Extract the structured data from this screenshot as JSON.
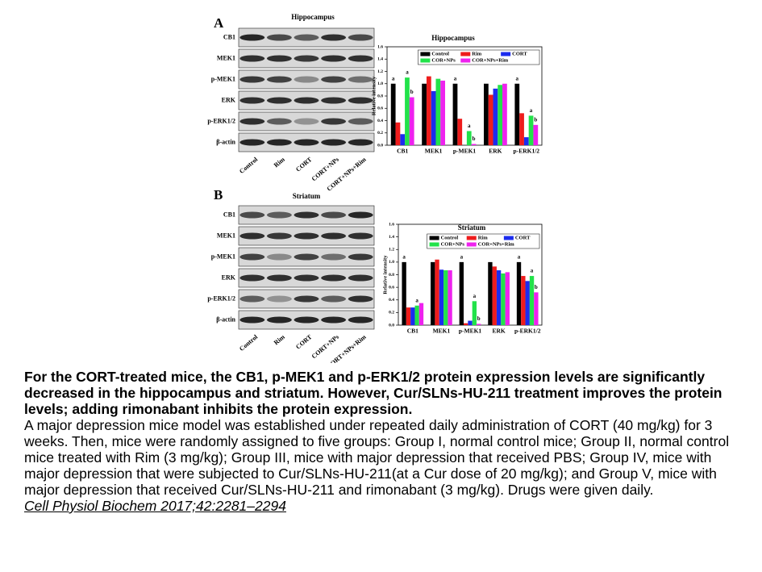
{
  "panels": [
    {
      "letter": "A",
      "blot": {
        "title": "Hippocampus",
        "rows": [
          "CB1",
          "MEK1",
          "p-MEK1",
          "ERK",
          "p-ERK1/2",
          "β-actin"
        ],
        "lanes": [
          "Control",
          "Rim",
          "CORT",
          "CORT+NPs",
          "CORT+NPs+Rim"
        ]
      }
    },
    {
      "letter": "B",
      "blot": {
        "title": "Striatum",
        "rows": [
          "CB1",
          "MEK1",
          "p-MEK1",
          "ERK",
          "p-ERK1/2",
          "β-actin"
        ],
        "lanes": [
          "Control",
          "Rim",
          "CORT",
          "CORT+NPs",
          "CORT+NPs+Rim"
        ]
      }
    }
  ],
  "chart_data": [
    {
      "type": "bar",
      "title": "Hippocampus",
      "y_label": "Relative intensity",
      "categories": [
        "CB1",
        "MEK1",
        "p-MEK1",
        "ERK",
        "p-ERK1/2"
      ],
      "ylim": [
        0,
        1.6
      ],
      "yticks": [
        {
          "value": 0,
          "label": "0.0"
        },
        {
          "value": 0.2,
          "label": "0.2"
        },
        {
          "value": 0.4,
          "label": "0.4"
        },
        {
          "value": 0.6,
          "label": "0.6"
        },
        {
          "value": 0.8,
          "label": "0.8"
        },
        {
          "value": 1,
          "label": "1.0"
        },
        {
          "value": 1.2,
          "label": "1.2"
        },
        {
          "value": 1.4,
          "label": "1.4"
        },
        {
          "value": 1.6,
          "label": "1.6"
        }
      ],
      "legend": "top",
      "series": [
        {
          "name": "Control",
          "color": "#000000",
          "values": [
            1.0,
            1.0,
            1.0,
            1.0,
            1.0
          ],
          "annotations": [
            "a",
            null,
            "a",
            null,
            "a"
          ]
        },
        {
          "name": "Rim",
          "color": "#ee1c1c",
          "values": [
            0.37,
            1.12,
            0.43,
            0.82,
            0.52
          ],
          "annotations": [
            null,
            null,
            null,
            null,
            null
          ]
        },
        {
          "name": "CORT",
          "color": "#1c2cee",
          "values": [
            0.18,
            0.88,
            0.0,
            0.92,
            0.13
          ],
          "annotations": [
            null,
            null,
            null,
            null,
            null
          ]
        },
        {
          "name": "COR+NPs",
          "color": "#22e24a",
          "values": [
            1.1,
            1.08,
            0.23,
            0.98,
            0.48
          ],
          "annotations": [
            "a",
            null,
            "a",
            null,
            "a"
          ]
        },
        {
          "name": "COR+NPs+Rim",
          "color": "#ee22ee",
          "values": [
            0.78,
            1.05,
            0.02,
            1.0,
            0.33
          ],
          "annotations": [
            "b",
            null,
            "b",
            null,
            "b"
          ]
        }
      ]
    },
    {
      "type": "bar",
      "title": "Striatum",
      "y_label": "Relative intensity",
      "categories": [
        "CB1",
        "MEK1",
        "p-MEK1",
        "ERK",
        "p-ERK1/2"
      ],
      "ylim": [
        0,
        1.6
      ],
      "yticks": [
        {
          "value": 0,
          "label": "0.0"
        },
        {
          "value": 0.2,
          "label": "0.2"
        },
        {
          "value": 0.4,
          "label": "0.4"
        },
        {
          "value": 0.6,
          "label": "0.6"
        },
        {
          "value": 0.8,
          "label": "0.8"
        },
        {
          "value": 1,
          "label": "1.0"
        },
        {
          "value": 1.2,
          "label": "1.2"
        },
        {
          "value": 1.4,
          "label": "1.4"
        },
        {
          "value": 1.6,
          "label": "1.6"
        }
      ],
      "legend": "top",
      "series": [
        {
          "name": "Control",
          "color": "#000000",
          "values": [
            1.0,
            1.0,
            1.0,
            1.0,
            1.0
          ],
          "annotations": [
            "a",
            null,
            "a",
            null,
            "a"
          ]
        },
        {
          "name": "Rim",
          "color": "#ee1c1c",
          "values": [
            0.28,
            1.04,
            0.03,
            0.93,
            0.78
          ],
          "annotations": [
            null,
            null,
            null,
            null,
            null
          ]
        },
        {
          "name": "CORT",
          "color": "#1c2cee",
          "values": [
            0.28,
            0.88,
            0.07,
            0.87,
            0.7
          ],
          "annotations": [
            null,
            null,
            null,
            null,
            null
          ]
        },
        {
          "name": "COR+NPs",
          "color": "#22e24a",
          "values": [
            0.31,
            0.87,
            0.38,
            0.82,
            0.78
          ],
          "annotations": [
            "a",
            null,
            "a",
            null,
            "a"
          ]
        },
        {
          "name": "COR+NPs+Rim",
          "color": "#ee22ee",
          "values": [
            0.35,
            0.87,
            0.02,
            0.84,
            0.52
          ],
          "annotations": [
            null,
            null,
            "b",
            null,
            "b"
          ]
        }
      ]
    }
  ],
  "caption": {
    "headline": "For the CORT-treated mice, the CB1, p-MEK1 and p-ERK1/2 protein expression levels are significantly decreased in the hippocampus and striatum. However, Cur/SLNs-HU-211 treatment improves the protein levels; adding rimonabant inhibits the protein expression.",
    "body": "A major depression mice model was established under repeated daily administration of CORT (40 mg/kg) for 3 weeks. Then, mice were randomly assigned to five groups: Group I, normal control mice; Group II, normal control mice treated with Rim (3 mg/kg); Group III, mice with major depression that received PBS; Group IV, mice with major depression that were subjected to Cur/SLNs-HU-211(at a Cur dose of 20 mg/kg); and Group V, mice with major depression that received Cur/SLNs-HU-211 and rimonabant (3 mg/kg). Drugs were given daily.",
    "citation": "Cell Physiol Biochem 2017;42:2281–2294"
  }
}
